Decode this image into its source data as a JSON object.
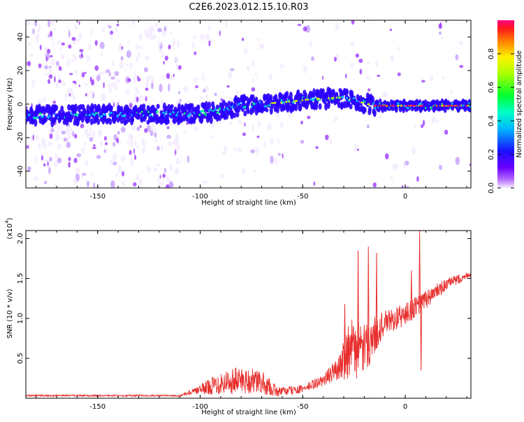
{
  "title": "C2E6.2023.012.15.10.R03",
  "colorbar": {
    "label": "Normalized spectral amplitude",
    "ticks": [
      {
        "value": 0.0,
        "label": "0.0"
      },
      {
        "value": 0.2,
        "label": "0.2"
      },
      {
        "value": 0.4,
        "label": "0.4"
      },
      {
        "value": 0.6,
        "label": "0.6"
      },
      {
        "value": 0.8,
        "label": "0.8"
      }
    ]
  },
  "chart_data": [
    {
      "type": "heatmap",
      "xlabel": "Height of straight line (km)",
      "ylabel": "Frequency (Hz)",
      "xlim": [
        -185,
        32
      ],
      "ylim": [
        -50,
        50
      ],
      "xticks": [
        {
          "value": -150,
          "label": "-150"
        },
        {
          "value": -100,
          "label": "-100"
        },
        {
          "value": -50,
          "label": "-50"
        },
        {
          "value": 0,
          "label": "0"
        }
      ],
      "yticks": [
        {
          "value": -40,
          "label": "-40"
        },
        {
          "value": -20,
          "label": "-20"
        },
        {
          "value": 0,
          "label": "0"
        },
        {
          "value": 20,
          "label": "20"
        },
        {
          "value": 40,
          "label": "40"
        }
      ],
      "ridge": [
        {
          "x": -185,
          "y": -7
        },
        {
          "x": -150,
          "y": -6
        },
        {
          "x": -110,
          "y": -6
        },
        {
          "x": -95,
          "y": -5
        },
        {
          "x": -80,
          "y": -1
        },
        {
          "x": -60,
          "y": 1
        },
        {
          "x": -45,
          "y": 3
        },
        {
          "x": -30,
          "y": 4
        },
        {
          "x": -18,
          "y": 0
        },
        {
          "x": -15,
          "y": -1
        },
        {
          "x": 0,
          "y": -1
        },
        {
          "x": 32,
          "y": -1
        }
      ],
      "colormap": [
        "#f4ecff",
        "#9d3cff",
        "#2a00ff",
        "#00c8ff",
        "#00ff6a",
        "#d8ff00",
        "#ff5500",
        "#ff007a"
      ]
    },
    {
      "type": "line",
      "xlabel": "Height of straight line (km)",
      "ylabel": "SNR (10 * v/v)",
      "scale_label": "(x10",
      "scale_exp": "4",
      "scale_close": ")",
      "color": "#e8302e",
      "xlim": [
        -185,
        32
      ],
      "ylim": [
        0,
        2.1
      ],
      "xticks": [
        {
          "value": -150,
          "label": "-150"
        },
        {
          "value": -100,
          "label": "-100"
        },
        {
          "value": -50,
          "label": "-50"
        },
        {
          "value": 0,
          "label": "0"
        }
      ],
      "yticks": [
        {
          "value": 0.5,
          "label": "0.5"
        },
        {
          "value": 1.0,
          "label": "1.0"
        },
        {
          "value": 1.5,
          "label": "1.5"
        },
        {
          "value": 2.0,
          "label": "2.0"
        }
      ],
      "envelope": [
        {
          "x": -185,
          "base": 0.03,
          "amp": 0.02
        },
        {
          "x": -110,
          "base": 0.03,
          "amp": 0.02
        },
        {
          "x": -102,
          "base": 0.08,
          "amp": 0.08
        },
        {
          "x": -90,
          "base": 0.15,
          "amp": 0.3
        },
        {
          "x": -80,
          "base": 0.18,
          "amp": 0.35
        },
        {
          "x": -70,
          "base": 0.15,
          "amp": 0.3
        },
        {
          "x": -62,
          "base": 0.06,
          "amp": 0.12
        },
        {
          "x": -50,
          "base": 0.1,
          "amp": 0.1
        },
        {
          "x": -40,
          "base": 0.2,
          "amp": 0.15
        },
        {
          "x": -32,
          "base": 0.35,
          "amp": 0.3
        },
        {
          "x": -28,
          "base": 0.5,
          "amp": 0.8
        },
        {
          "x": -20,
          "base": 0.5,
          "amp": 0.65
        },
        {
          "x": -13,
          "base": 0.8,
          "amp": 0.4
        },
        {
          "x": -10,
          "base": 0.9,
          "amp": 0.3
        },
        {
          "x": 0,
          "base": 1.0,
          "amp": 0.3
        },
        {
          "x": 10,
          "base": 1.2,
          "amp": 0.25
        },
        {
          "x": 20,
          "base": 1.4,
          "amp": 0.15
        },
        {
          "x": 32,
          "base": 1.55,
          "amp": 0.08
        }
      ],
      "spikes": [
        {
          "x": -29.5,
          "y": 1.18
        },
        {
          "x": -23,
          "y": 1.85
        },
        {
          "x": -18,
          "y": 1.9
        },
        {
          "x": -14,
          "y": 1.82
        },
        {
          "x": 7,
          "y": 2.1
        },
        {
          "x": 3,
          "y": 1.6
        },
        {
          "x": 7.7,
          "y": 0.35
        }
      ]
    }
  ]
}
